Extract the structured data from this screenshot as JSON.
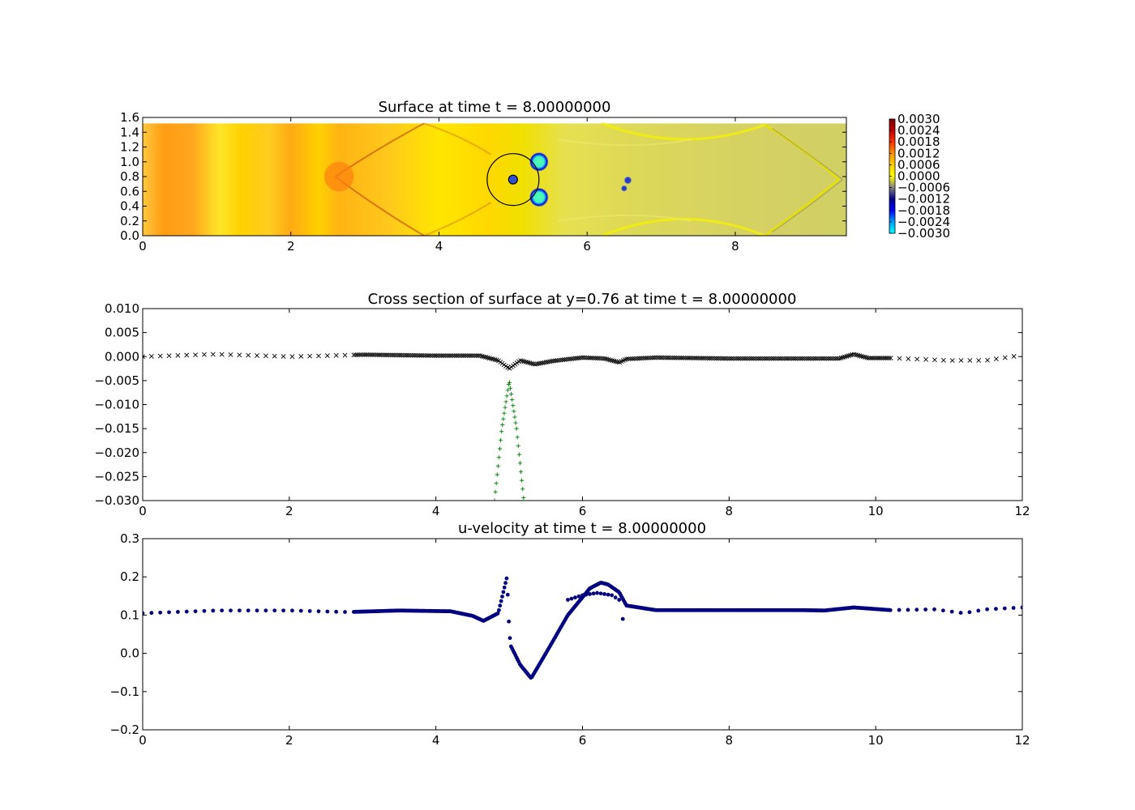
{
  "chart_data": [
    {
      "type": "heatmap",
      "title": "Surface at time t =     8.00000000",
      "xlim": [
        0,
        9.5
      ],
      "ylim": [
        0,
        1.6
      ],
      "xticks": [
        "0",
        "2",
        "4",
        "6",
        "8"
      ],
      "yticks": [
        "0.0",
        "0.2",
        "0.4",
        "0.6",
        "0.8",
        "1.0",
        "1.2",
        "1.4",
        "1.6"
      ],
      "grid": false,
      "colormap": "jet",
      "colorbar": {
        "range": [
          -0.003,
          0.003
        ],
        "ticks": [
          "0.0030",
          "0.0024",
          "0.0018",
          "0.0012",
          "0.0006",
          "0.0000",
          "−0.0006",
          "−0.0012",
          "−0.0018",
          "−0.0024",
          "−0.0030"
        ]
      },
      "domain_top": 1.52,
      "obstacle_circles": [
        {
          "cx": 5.0,
          "cy": 0.76,
          "r": 0.35
        },
        {
          "cx": 5.0,
          "cy": 0.76,
          "r": 0.06
        }
      ],
      "features": [
        {
          "kind": "depression",
          "x": 5.35,
          "y": 1.0,
          "r": 0.12
        },
        {
          "kind": "depression",
          "x": 5.35,
          "y": 0.52,
          "r": 0.12
        },
        {
          "kind": "depression",
          "x": 6.55,
          "y": 0.75,
          "r": 0.05
        },
        {
          "kind": "depression",
          "x": 6.5,
          "y": 0.64,
          "r": 0.04
        }
      ],
      "colors": {
        "high": "#ff8c00",
        "mid": "#ffd800",
        "neutral": "#e6dc58",
        "low": "#1010d0",
        "lowest": "#40ffb0"
      }
    },
    {
      "type": "scatter",
      "title": "Cross section of surface at y=0.76 at time t =     8.00000000",
      "xlim": [
        0,
        12
      ],
      "ylim": [
        -0.03,
        0.01
      ],
      "xticks": [
        "0",
        "2",
        "4",
        "6",
        "8",
        "10",
        "12"
      ],
      "yticks": [
        "0.010",
        "0.005",
        "0.000",
        "−0.005",
        "−0.010",
        "−0.015",
        "−0.020",
        "−0.025",
        "−0.030"
      ],
      "grid": false,
      "series": [
        {
          "marker": "x",
          "color": "#000000",
          "x": [
            0,
            1,
            2,
            2.8,
            3,
            4,
            4.6,
            4.85,
            5.0,
            5.15,
            5.35,
            5.6,
            6.0,
            6.3,
            6.5,
            6.6,
            7.0,
            8.0,
            9.0,
            9.5,
            9.7,
            9.9,
            10.2,
            11.0,
            11.5,
            12.0
          ],
          "y": [
            0.0,
            0.0005,
            0.0,
            0.0003,
            0.0004,
            0.0002,
            0.0002,
            -0.0008,
            -0.0025,
            -0.0008,
            -0.0016,
            -0.0009,
            -0.0002,
            -0.0004,
            -0.0012,
            -0.0005,
            -0.0002,
            -0.0004,
            -0.0004,
            -0.0004,
            0.0005,
            -0.0003,
            -0.0003,
            -0.0008,
            -0.0008,
            0.0003
          ]
        },
        {
          "marker": "+",
          "color": "#008000",
          "x": [
            4.8,
            4.9,
            5.0,
            5.1,
            5.2
          ],
          "y": [
            -0.03,
            -0.015,
            -0.005,
            -0.015,
            -0.03
          ]
        }
      ]
    },
    {
      "type": "scatter",
      "title": "u-velocity at time t =     8.00000000",
      "xlim": [
        0,
        12
      ],
      "ylim": [
        -0.2,
        0.3
      ],
      "xticks": [
        "0",
        "2",
        "4",
        "6",
        "8",
        "10",
        "12"
      ],
      "yticks": [
        "0.3",
        "0.2",
        "0.1",
        "0.0",
        "−0.1",
        "−0.2"
      ],
      "grid": false,
      "series": [
        {
          "marker": "o",
          "color": "#000080",
          "x": [
            0,
            1,
            2,
            2.8,
            3.5,
            4.2,
            4.5,
            4.65,
            4.85,
            4.97,
            5.0,
            5.02,
            5.06,
            5.15,
            5.3,
            5.5,
            5.8,
            6.1,
            6.25,
            6.35,
            6.5,
            6.6,
            7.0,
            8.0,
            9.0,
            9.3,
            9.7,
            10.2,
            10.8,
            11.2,
            11.5,
            12.0
          ],
          "y": [
            0.105,
            0.112,
            0.112,
            0.108,
            0.112,
            0.11,
            0.098,
            0.085,
            0.105,
            0.2,
            0.06,
            0.02,
            0.005,
            -0.03,
            -0.065,
            0.0,
            0.1,
            0.17,
            0.185,
            0.18,
            0.16,
            0.125,
            0.113,
            0.113,
            0.113,
            0.112,
            0.12,
            0.113,
            0.115,
            0.105,
            0.115,
            0.12
          ]
        },
        {
          "marker": "o",
          "color": "#000080",
          "x": [
            5.8,
            6.0,
            6.2,
            6.4,
            6.5,
            6.55
          ],
          "y": [
            0.14,
            0.152,
            0.158,
            0.152,
            0.14,
            0.09
          ]
        }
      ]
    }
  ]
}
